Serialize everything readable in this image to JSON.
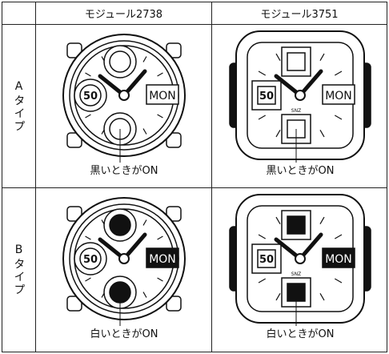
{
  "header": {
    "columns": [
      "モジュール2738",
      "モジュール3751"
    ]
  },
  "rows": [
    {
      "label": "Aタイプ",
      "cells": [
        {
          "display": [
            "50",
            "MON"
          ],
          "caption": "黒いときがON"
        },
        {
          "display": [
            "50",
            "MON"
          ],
          "sub": "SNZ",
          "caption": "黒いときがON"
        }
      ]
    },
    {
      "label": "Bタイプ",
      "cells": [
        {
          "display": [
            "50",
            "MON"
          ],
          "caption": "白いときがON"
        },
        {
          "display": [
            "50",
            "MON"
          ],
          "sub": "SNZ",
          "caption": "白いときがON"
        }
      ]
    }
  ]
}
